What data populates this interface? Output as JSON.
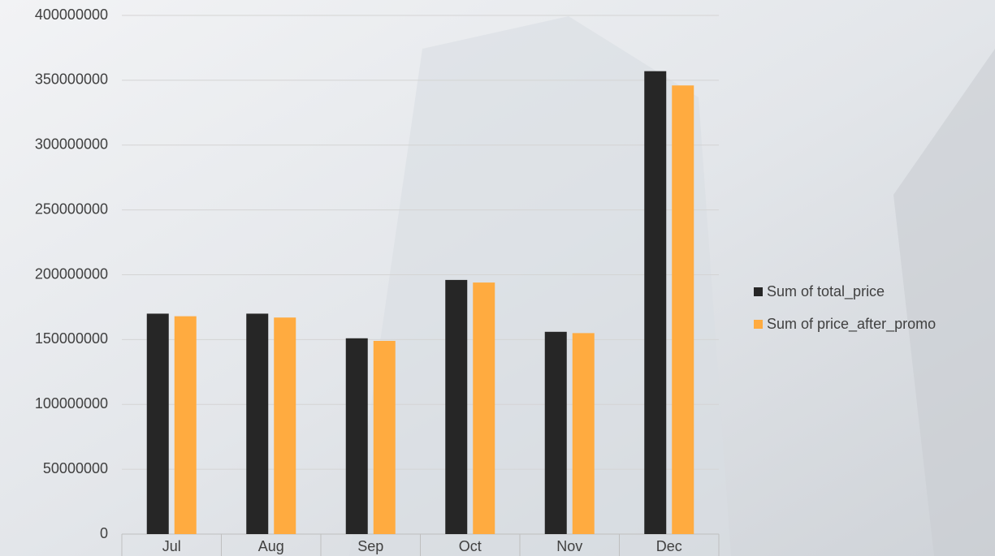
{
  "chart_data": {
    "type": "bar",
    "categories": [
      "Jul",
      "Aug",
      "Sep",
      "Oct",
      "Nov",
      "Dec"
    ],
    "series": [
      {
        "name": "Sum of total_price",
        "color": "#262626",
        "values": [
          170000000,
          170000000,
          151000000,
          196000000,
          156000000,
          357000000
        ]
      },
      {
        "name": "Sum of price_after_promo",
        "color": "#ffab40",
        "values": [
          168000000,
          167000000,
          149000000,
          194000000,
          155000000,
          346000000
        ]
      }
    ],
    "ylim": [
      0,
      400000000
    ],
    "yticks": [
      0,
      50000000,
      100000000,
      150000000,
      200000000,
      250000000,
      300000000,
      350000000,
      400000000
    ],
    "grid": true,
    "legend": "right"
  }
}
